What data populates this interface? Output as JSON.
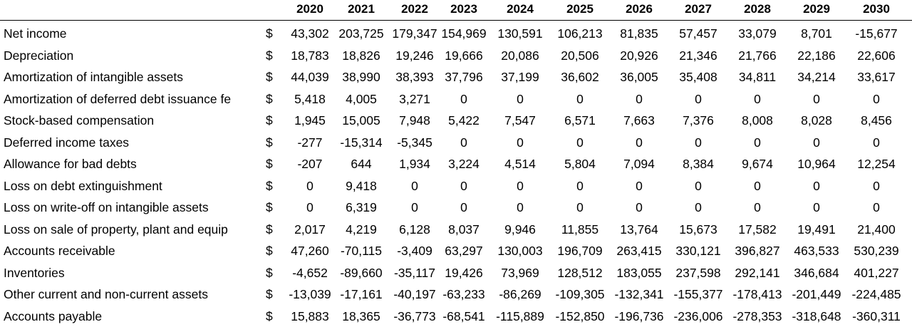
{
  "currency_symbol": "$",
  "years": [
    "2020",
    "2021",
    "2022",
    "2023",
    "2024",
    "2025",
    "2026",
    "2027",
    "2028",
    "2029",
    "2030"
  ],
  "rows": [
    {
      "label": "Net income",
      "values": [
        "43,302",
        "203,725",
        "179,347",
        "154,969",
        "130,591",
        "106,213",
        "81,835",
        "57,457",
        "33,079",
        "8,701",
        "-15,677"
      ]
    },
    {
      "label": "Depreciation",
      "values": [
        "18,783",
        "18,826",
        "19,246",
        "19,666",
        "20,086",
        "20,506",
        "20,926",
        "21,346",
        "21,766",
        "22,186",
        "22,606"
      ]
    },
    {
      "label": "Amortization of intangible assets",
      "values": [
        "44,039",
        "38,990",
        "38,393",
        "37,796",
        "37,199",
        "36,602",
        "36,005",
        "35,408",
        "34,811",
        "34,214",
        "33,617"
      ]
    },
    {
      "label": "Amortization of deferred debt issuance fe",
      "values": [
        "5,418",
        "4,005",
        "3,271",
        "0",
        "0",
        "0",
        "0",
        "0",
        "0",
        "0",
        "0"
      ]
    },
    {
      "label": "Stock-based compensation",
      "values": [
        "1,945",
        "15,005",
        "7,948",
        "5,422",
        "7,547",
        "6,571",
        "7,663",
        "7,376",
        "8,008",
        "8,028",
        "8,456"
      ]
    },
    {
      "label": "Deferred income taxes",
      "values": [
        "-277",
        "-15,314",
        "-5,345",
        "0",
        "0",
        "0",
        "0",
        "0",
        "0",
        "0",
        "0"
      ]
    },
    {
      "label": "Allowance for bad debts",
      "values": [
        "-207",
        "644",
        "1,934",
        "3,224",
        "4,514",
        "5,804",
        "7,094",
        "8,384",
        "9,674",
        "10,964",
        "12,254"
      ]
    },
    {
      "label": "Loss on debt extinguishment",
      "values": [
        "0",
        "9,418",
        "0",
        "0",
        "0",
        "0",
        "0",
        "0",
        "0",
        "0",
        "0"
      ]
    },
    {
      "label": "Loss on write-off on intangible assets",
      "values": [
        "0",
        "6,319",
        "0",
        "0",
        "0",
        "0",
        "0",
        "0",
        "0",
        "0",
        "0"
      ]
    },
    {
      "label": "Loss on sale of property, plant and equip",
      "values": [
        "2,017",
        "4,219",
        "6,128",
        "8,037",
        "9,946",
        "11,855",
        "13,764",
        "15,673",
        "17,582",
        "19,491",
        "21,400"
      ]
    },
    {
      "label": "Accounts receivable",
      "values": [
        "47,260",
        "-70,115",
        "-3,409",
        "63,297",
        "130,003",
        "196,709",
        "263,415",
        "330,121",
        "396,827",
        "463,533",
        "530,239"
      ]
    },
    {
      "label": "Inventories",
      "values": [
        "-4,652",
        "-89,660",
        "-35,117",
        "19,426",
        "73,969",
        "128,512",
        "183,055",
        "237,598",
        "292,141",
        "346,684",
        "401,227"
      ]
    },
    {
      "label": "Other current and non-current assets",
      "values": [
        "-13,039",
        "-17,161",
        "-40,197",
        "-63,233",
        "-86,269",
        "-109,305",
        "-132,341",
        "-155,377",
        "-178,413",
        "-201,449",
        "-224,485"
      ]
    },
    {
      "label": "Accounts payable",
      "values": [
        "15,883",
        "18,365",
        "-36,773",
        "-68,541",
        "-115,889",
        "-152,850",
        "-196,736",
        "-236,006",
        "-278,353",
        "-318,648",
        "-360,311"
      ]
    }
  ]
}
